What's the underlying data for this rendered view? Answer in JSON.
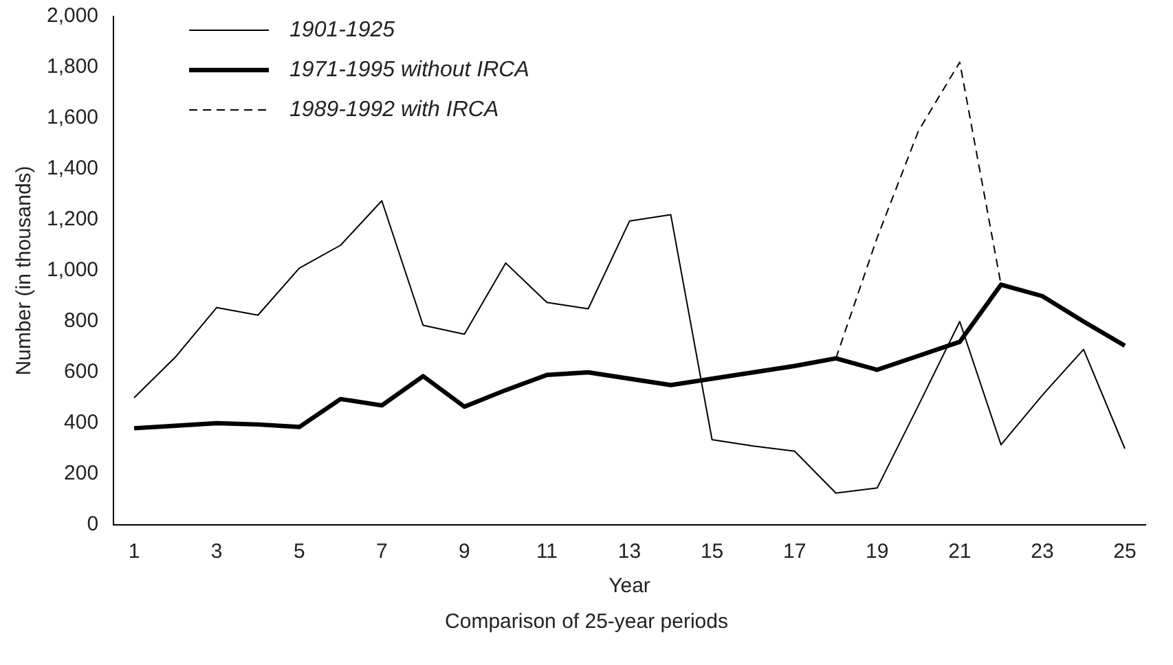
{
  "chart_data": {
    "type": "line",
    "xlabel": "Year",
    "ylabel": "Number (in thousands)",
    "annotations": [
      "Comparison of 25-year periods"
    ],
    "xlim": [
      0.5,
      25.5
    ],
    "xticks": [
      1,
      3,
      5,
      7,
      9,
      11,
      13,
      15,
      17,
      19,
      21,
      23,
      25
    ],
    "ylim": [
      0,
      2000
    ],
    "yticks": [
      0,
      200,
      400,
      600,
      800,
      {
        "value": 1000,
        "label": "1,000"
      },
      {
        "value": 1200,
        "label": "1,200"
      },
      {
        "value": 1400,
        "label": "1,400"
      },
      {
        "value": 1600,
        "label": "1,600"
      },
      {
        "value": 1800,
        "label": "1,800"
      },
      {
        "value": 2000,
        "label": "2,000"
      }
    ],
    "grid": false,
    "legend": "top left",
    "marker": "none",
    "series": [
      {
        "name": "1901-1925",
        "color": "#000000",
        "line_style": "solid",
        "x": [
          1,
          2,
          3,
          4,
          5,
          6,
          7,
          8,
          9,
          10,
          11,
          12,
          13,
          14,
          15,
          16,
          17,
          18,
          19,
          20,
          21,
          22,
          23,
          24,
          25
        ],
        "values": [
          500,
          660,
          855,
          825,
          1010,
          1100,
          1275,
          785,
          750,
          1030,
          875,
          850,
          1195,
          1220,
          335,
          310,
          290,
          125,
          145,
          470,
          800,
          315,
          510,
          690,
          300
        ]
      },
      {
        "name": "1971-1995 without IRCA",
        "color": "#000000",
        "line_style": "solid",
        "x": [
          1,
          2,
          3,
          4,
          5,
          6,
          7,
          8,
          9,
          10,
          11,
          12,
          13,
          14,
          15,
          16,
          17,
          18,
          19,
          20,
          21,
          22,
          23,
          24,
          25
        ],
        "values": [
          380,
          390,
          400,
          395,
          385,
          495,
          470,
          585,
          465,
          530,
          590,
          600,
          575,
          550,
          575,
          600,
          625,
          655,
          610,
          665,
          720,
          945,
          900,
          800,
          705
        ]
      },
      {
        "name": "1989-1992 with IRCA",
        "color": "#000000",
        "line_style": "dashed",
        "x": [
          18,
          19,
          20,
          21,
          22
        ],
        "values": [
          655,
          1130,
          1550,
          1820,
          945
        ]
      }
    ]
  }
}
